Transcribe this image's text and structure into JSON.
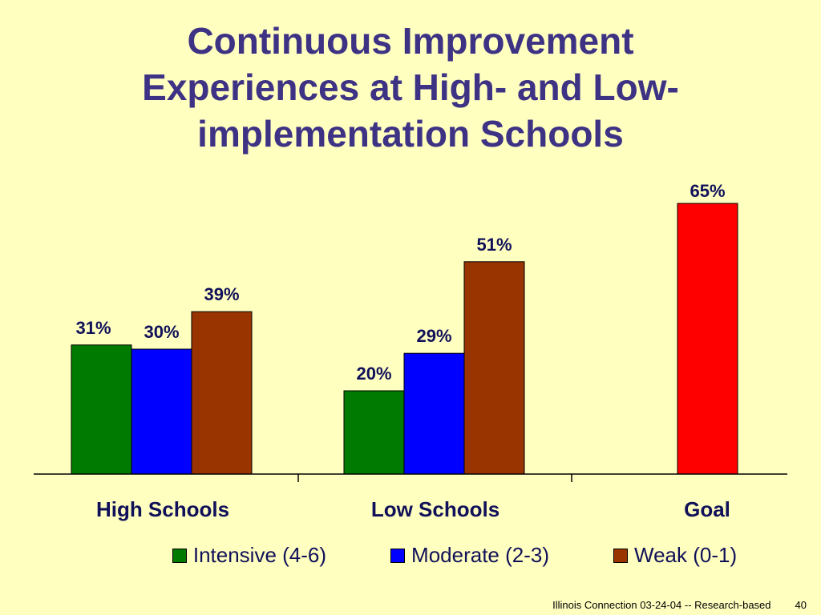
{
  "slide": {
    "title_lines": [
      "Continuous Improvement",
      "Experiences at High- and Low-",
      "implementation Schools"
    ],
    "footer_text": "Illinois Connection 03-24-04 -- Research-based",
    "page_number": "40"
  },
  "colors": {
    "background": "#FFFFC0",
    "title": "#3D3284",
    "label": "#11115A",
    "intensive": "#007A00",
    "moderate": "#0000FF",
    "weak": "#993300",
    "goal": "#FF0000"
  },
  "chart_data": {
    "type": "bar",
    "title": "Continuous Improvement Experiences at High- and Low-implementation Schools",
    "categories": [
      "High Schools",
      "Low Schools",
      "Goal"
    ],
    "series": [
      {
        "name": "Intensive (4-6)",
        "values": [
          31,
          20,
          null
        ],
        "labels": [
          "31%",
          "20%",
          ""
        ]
      },
      {
        "name": "Moderate (2-3)",
        "values": [
          30,
          29,
          null
        ],
        "labels": [
          "30%",
          "29%",
          ""
        ]
      },
      {
        "name": "Weak (0-1)",
        "values": [
          39,
          51,
          null
        ],
        "labels": [
          "39%",
          "51%",
          ""
        ]
      }
    ],
    "goal": {
      "category": "Goal",
      "value": 65,
      "label": "65%"
    },
    "ylim": [
      0,
      70
    ],
    "grid": false,
    "legend_position": "bottom"
  }
}
